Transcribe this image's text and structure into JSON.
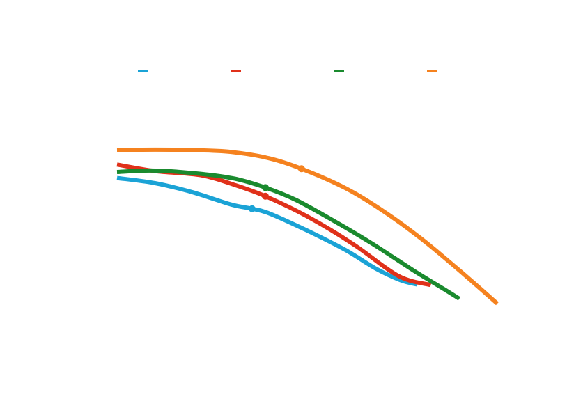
{
  "chart_data": {
    "type": "line",
    "title": "",
    "xlabel": "",
    "ylabel": "",
    "xlim": [
      0,
      100
    ],
    "ylim": [
      0,
      100
    ],
    "grid": false,
    "legend_placement": "top",
    "series": [
      {
        "color": "#1ba3d6",
        "x": [
          0,
          10,
          20,
          30,
          35.5,
          40,
          50,
          60,
          68,
          74.5,
          79
        ],
        "y": [
          54.0,
          51.8,
          47.8,
          42.6,
          40.8,
          38.8,
          31.4,
          23.1,
          15.1,
          10.1,
          8.2
        ],
        "marker": {
          "x": 35.5,
          "y": 40.8
        }
      },
      {
        "color": "#e0311a",
        "x": [
          0,
          10,
          22,
          31,
          39,
          50,
          62,
          74,
          82.5
        ],
        "y": [
          59.8,
          57.0,
          55.2,
          51.0,
          46.2,
          37.5,
          25.7,
          11.9,
          8.0
        ],
        "marker": {
          "x": 39,
          "y": 46.2
        }
      },
      {
        "color": "#1a8a2e",
        "x": [
          0,
          10,
          22,
          31,
          39,
          47,
          57,
          67,
          78,
          86,
          90
        ],
        "y": [
          56.6,
          57.2,
          55.8,
          53.7,
          49.9,
          44.6,
          35.6,
          25.9,
          14.2,
          6.2,
          2.1
        ],
        "marker": {
          "x": 39,
          "y": 49.9
        }
      },
      {
        "color": "#f5821f",
        "x": [
          0,
          10,
          20,
          30,
          40,
          48.5,
          60,
          70,
          80,
          90,
          100
        ],
        "y": [
          66.0,
          66.2,
          66.0,
          65.2,
          62.5,
          58.0,
          49.7,
          39.8,
          27.9,
          14.3,
          0.0
        ],
        "marker": {
          "x": 48.5,
          "y": 58.0
        }
      }
    ]
  }
}
